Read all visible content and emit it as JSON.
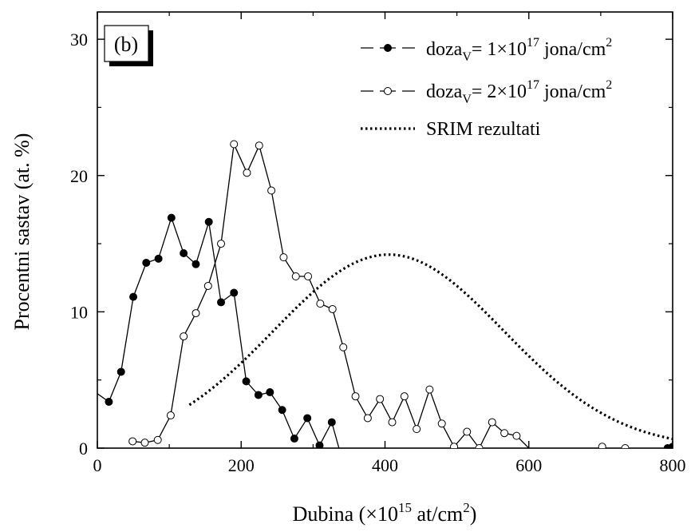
{
  "chart_data": {
    "type": "line",
    "panel_label": "(b)",
    "xlabel": {
      "main": "Dubina (×10",
      "sup1": "15",
      "mid": " at/cm",
      "sup2": "2",
      "end": ")"
    },
    "ylabel": "Procentni sastav (at. %)",
    "xlim": [
      0,
      800
    ],
    "ylim": [
      0,
      32
    ],
    "xticks": [
      0,
      200,
      400,
      600,
      800
    ],
    "yticks": [
      0,
      10,
      20,
      30
    ],
    "xtick_labels": [
      "0",
      "200",
      "400",
      "600",
      "800"
    ],
    "ytick_labels": [
      "0",
      "10",
      "20",
      "30"
    ],
    "legend_position": "top-right",
    "series": [
      {
        "name": "doza_V= 1×10^17 jona/cm^2",
        "legend": {
          "pre": "doza",
          "sub": "V",
          "mid": "= 1×10",
          "sup": "17",
          "mid2": " jona/cm",
          "sup2": "2"
        },
        "marker": "filled-circle",
        "x": [
          0,
          16,
          33,
          50,
          68,
          85,
          103,
          120,
          137,
          155,
          172,
          190,
          207,
          224,
          240,
          257,
          274,
          292,
          309,
          326,
          336
        ],
        "y": [
          4.0,
          3.4,
          5.6,
          11.1,
          13.6,
          13.9,
          16.9,
          14.3,
          13.5,
          16.6,
          10.7,
          11.4,
          4.9,
          3.9,
          4.1,
          2.8,
          0.7,
          2.2,
          0.2,
          1.9,
          0.0
        ],
        "marker_from": 1,
        "extra_points": [
          {
            "x": 793,
            "y": 0.0
          },
          {
            "x": 800,
            "y": 0.1
          }
        ]
      },
      {
        "name": "doza_V= 2×10^17 jona/cm^2",
        "legend": {
          "pre": "doza",
          "sub": "V",
          "mid": "= 2×10",
          "sup": "17",
          "mid2": " jona/cm",
          "sup2": "2"
        },
        "marker": "open-circle",
        "x": [
          49,
          66,
          84,
          102,
          120,
          137,
          154,
          172,
          190,
          208,
          225,
          242,
          259,
          276,
          293,
          310,
          327,
          342,
          359,
          376,
          393,
          410,
          427,
          444,
          462,
          479,
          496,
          514,
          531,
          549,
          566,
          583,
          600,
          702,
          734
        ],
        "y": [
          0.5,
          0.4,
          0.6,
          2.4,
          8.2,
          9.9,
          11.9,
          15.0,
          22.3,
          20.2,
          22.2,
          18.9,
          14.0,
          12.6,
          12.6,
          10.6,
          10.2,
          7.4,
          3.8,
          2.2,
          3.6,
          1.9,
          3.8,
          1.4,
          4.3,
          1.8,
          0.1,
          1.2,
          0.0,
          1.9,
          1.1,
          0.9,
          0.0,
          0.1,
          0.0
        ],
        "connect_until_index": 32
      },
      {
        "name": "SRIM rezultati",
        "style": "dotted",
        "curve": {
          "type": "gaussian",
          "peak_x": 405,
          "peak_y": 14.2,
          "sigma": 160,
          "x_start": 128,
          "x_end": 800
        }
      }
    ]
  }
}
